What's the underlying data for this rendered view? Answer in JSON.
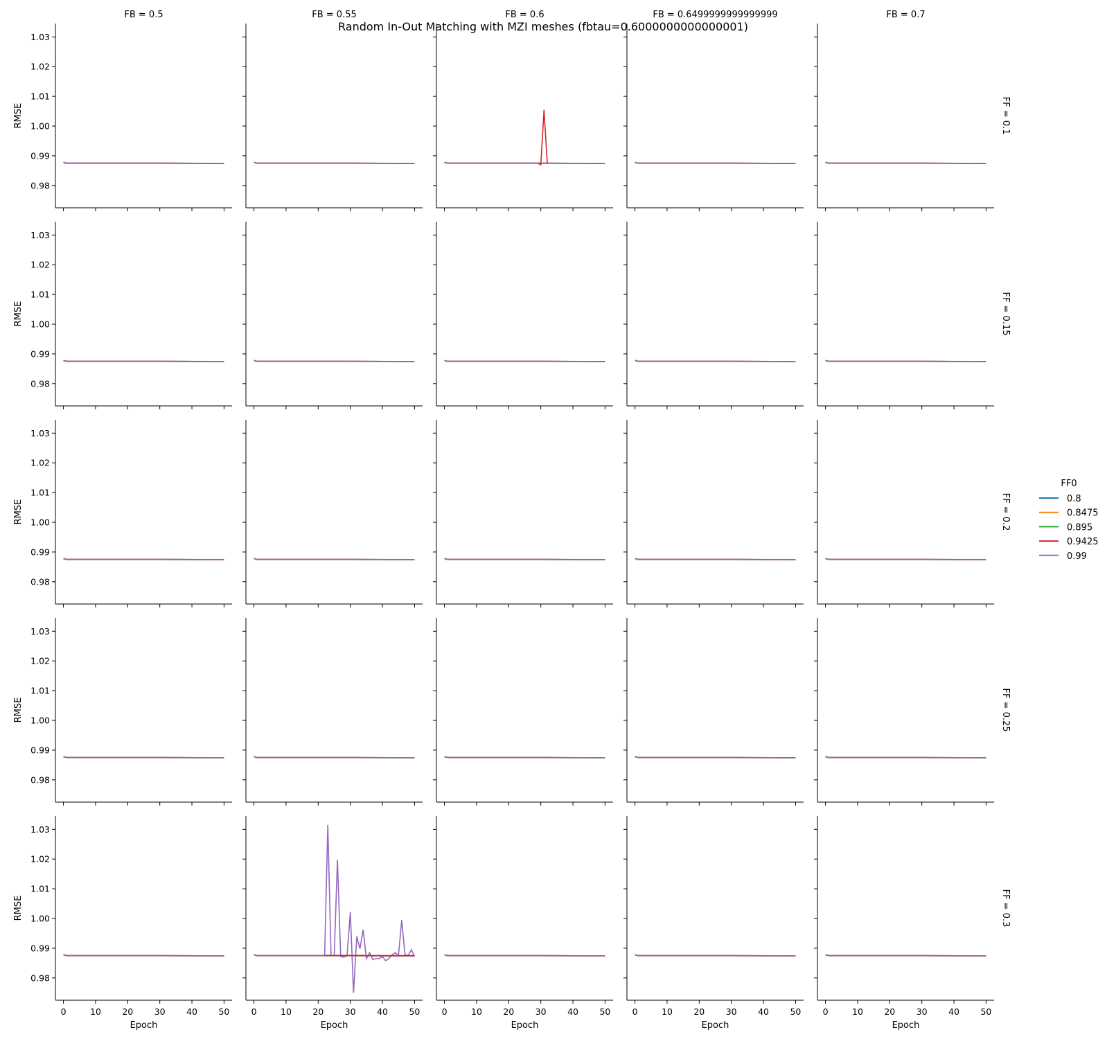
{
  "chart_data": {
    "type": "line",
    "title": "Random In-Out Matching with MZI meshes (fbtau=0.6000000000000001)",
    "xlabel": "Epoch",
    "ylabel": "RMSE",
    "xlim": [
      -2.5,
      52.5
    ],
    "ylim": [
      0.9725,
      1.0345
    ],
    "xticks": [
      0,
      10,
      20,
      30,
      40,
      50
    ],
    "xtick_labels": [
      "0",
      "10",
      "20",
      "30",
      "40",
      "50"
    ],
    "yticks": [
      0.98,
      0.99,
      1.0,
      1.01,
      1.02,
      1.03
    ],
    "ytick_labels": [
      "0.98",
      "0.99",
      "1.00",
      "1.01",
      "1.02",
      "1.03"
    ],
    "col_labels": [
      "FB = 0.5",
      "FB = 0.55",
      "FB = 0.6",
      "FB = 0.6499999999999999",
      "FB = 0.7"
    ],
    "row_labels": [
      "FF = 0.1",
      "FF = 0.15",
      "FF = 0.2",
      "FF = 0.25",
      "FF = 0.3"
    ],
    "legend": {
      "title": "FF0",
      "placement": "right",
      "entries": [
        {
          "label": "0.8",
          "color": "#1f77b4"
        },
        {
          "label": "0.8475",
          "color": "#ff7f0e"
        },
        {
          "label": "0.895",
          "color": "#2ca02c"
        },
        {
          "label": "0.9425",
          "color": "#d62728"
        },
        {
          "label": "0.99",
          "color": "#9467bd"
        }
      ]
    },
    "baseline": {
      "description_values": [
        0.9878,
        0.9875,
        0.9875,
        0.9875,
        0.9875,
        0.9874
      ],
      "x": [
        0,
        1,
        10,
        20,
        30,
        50
      ],
      "y": [
        0.9878,
        0.9875,
        0.9875,
        0.9875,
        0.9875,
        0.9874
      ]
    },
    "anomalies": [
      {
        "row": 0,
        "col": 2,
        "series": "0.9425",
        "x": [
          29,
          30,
          31,
          32
        ],
        "y": [
          0.9875,
          0.987,
          1.0055,
          0.9875
        ]
      },
      {
        "row": 4,
        "col": 1,
        "series": "0.99",
        "x": [
          22,
          23,
          24,
          25,
          26,
          27,
          28,
          29,
          30,
          31,
          32,
          33,
          34,
          35,
          36,
          37,
          38,
          39,
          40,
          41,
          42,
          43,
          44,
          45,
          46,
          47,
          48,
          49,
          50
        ],
        "y": [
          0.9875,
          1.0315,
          0.9875,
          0.9875,
          1.0198,
          0.9872,
          0.987,
          0.9875,
          1.0022,
          0.975,
          0.994,
          0.9898,
          0.9962,
          0.9865,
          0.9885,
          0.9862,
          0.9865,
          0.9865,
          0.9872,
          0.9858,
          0.9865,
          0.9878,
          0.9885,
          0.9875,
          0.9995,
          0.988,
          0.9875,
          0.9895,
          0.9872
        ]
      },
      {
        "row": 4,
        "col": 1,
        "series": "0.9425",
        "x": [
          22,
          50
        ],
        "y": [
          0.9875,
          0.9875
        ]
      }
    ]
  }
}
